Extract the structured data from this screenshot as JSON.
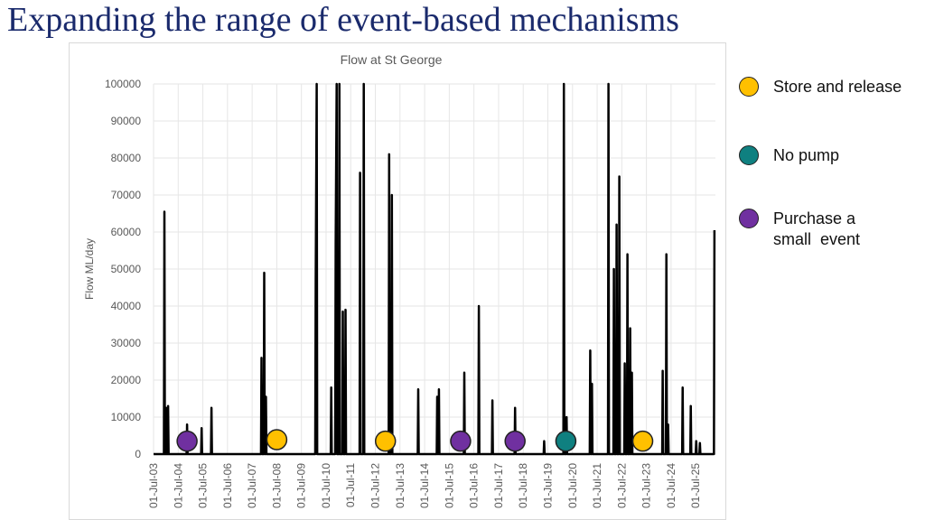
{
  "page_title": "Expanding the range of event-based mechanisms",
  "chart_data": {
    "type": "line",
    "title": "Flow at St George",
    "y_label": "Flow ML/day",
    "xlim": [
      2003.5,
      2026.3
    ],
    "xticks": [
      {
        "value": 2003.5,
        "label": "01-Jul-03"
      },
      {
        "value": 2004.5,
        "label": "01-Jul-04"
      },
      {
        "value": 2005.5,
        "label": "01-Jul-05"
      },
      {
        "value": 2006.5,
        "label": "01-Jul-06"
      },
      {
        "value": 2007.5,
        "label": "01-Jul-07"
      },
      {
        "value": 2008.5,
        "label": "01-Jul-08"
      },
      {
        "value": 2009.5,
        "label": "01-Jul-09"
      },
      {
        "value": 2010.5,
        "label": "01-Jul-10"
      },
      {
        "value": 2011.5,
        "label": "01-Jul-11"
      },
      {
        "value": 2012.5,
        "label": "01-Jul-12"
      },
      {
        "value": 2013.5,
        "label": "01-Jul-13"
      },
      {
        "value": 2014.5,
        "label": "01-Jul-14"
      },
      {
        "value": 2015.5,
        "label": "01-Jul-15"
      },
      {
        "value": 2016.5,
        "label": "01-Jul-16"
      },
      {
        "value": 2017.5,
        "label": "01-Jul-17"
      },
      {
        "value": 2018.5,
        "label": "01-Jul-18"
      },
      {
        "value": 2019.5,
        "label": "01-Jul-19"
      },
      {
        "value": 2020.5,
        "label": "01-Jul-20"
      },
      {
        "value": 2021.5,
        "label": "01-Jul-21"
      },
      {
        "value": 2022.5,
        "label": "01-Jul-22"
      },
      {
        "value": 2023.5,
        "label": "01-Jul-23"
      },
      {
        "value": 2024.5,
        "label": "01-Jul-24"
      },
      {
        "value": 2025.5,
        "label": "01-Jul-25"
      }
    ],
    "ylim": [
      0,
      100000
    ],
    "yticks": [
      0,
      10000,
      20000,
      30000,
      40000,
      50000,
      60000,
      70000,
      80000,
      90000,
      100000
    ],
    "grid": true,
    "series": [
      {
        "color": "#000000",
        "x": [
          2003.5,
          2003.92,
          2003.94,
          2003.96,
          2003.99,
          2004.01,
          2004.03,
          2004.07,
          2004.09,
          2004.11,
          2004.84,
          2004.86,
          2004.88,
          2005.43,
          2005.45,
          2005.47,
          2005.83,
          2005.85,
          2005.87,
          2007.86,
          2007.88,
          2007.9,
          2007.97,
          2007.99,
          2008.01,
          2008.04,
          2008.06,
          2008.08,
          2010.06,
          2010.08,
          2010.12,
          2010.14,
          2010.69,
          2010.71,
          2010.73,
          2010.87,
          2010.89,
          2010.93,
          2010.95,
          2011.02,
          2011.04,
          2011.06,
          2011.16,
          2011.18,
          2011.2,
          2011.27,
          2011.29,
          2011.31,
          2011.86,
          2011.88,
          2011.9,
          2012.01,
          2012.03,
          2012.05,
          2013.04,
          2013.06,
          2013.08,
          2013.15,
          2013.17,
          2013.19,
          2014.22,
          2014.24,
          2014.26,
          2014.99,
          2015.01,
          2015.03,
          2015.06,
          2015.08,
          2015.1,
          2016.09,
          2016.11,
          2016.13,
          2016.68,
          2016.7,
          2016.72,
          2017.23,
          2017.25,
          2017.27,
          2018.15,
          2018.17,
          2018.19,
          2019.33,
          2019.35,
          2019.37,
          2020.13,
          2020.15,
          2020.17,
          2020.24,
          2020.26,
          2020.28,
          2021.2,
          2021.22,
          2021.24,
          2021.27,
          2021.29,
          2021.31,
          2021.94,
          2021.96,
          2021.98,
          2022.16,
          2022.18,
          2022.2,
          2022.27,
          2022.29,
          2022.31,
          2022.38,
          2022.4,
          2022.42,
          2022.6,
          2022.62,
          2022.64,
          2022.71,
          2022.73,
          2022.75,
          2022.82,
          2022.84,
          2022.86,
          2022.89,
          2022.91,
          2022.93,
          2024.14,
          2024.16,
          2024.18,
          2024.29,
          2024.31,
          2024.33,
          2024.36,
          2024.38,
          2024.4,
          2024.95,
          2024.97,
          2024.99,
          2025.28,
          2025.3,
          2025.32,
          2025.5,
          2025.52,
          2025.54,
          2025.65,
          2025.67,
          2025.69,
          2026.24,
          2026.26
        ],
        "values": [
          0,
          0,
          65500,
          0,
          0,
          12500,
          0,
          0,
          13000,
          0,
          0,
          8000,
          0,
          0,
          7000,
          0,
          0,
          12500,
          0,
          0,
          26000,
          0,
          0,
          49000,
          0,
          0,
          15500,
          0,
          0,
          47000,
          100000,
          0,
          0,
          18000,
          0,
          0,
          57000,
          100000,
          0,
          0,
          100000,
          0,
          0,
          38500,
          0,
          0,
          39000,
          0,
          0,
          76000,
          0,
          0,
          100000,
          0,
          0,
          81000,
          0,
          0,
          70000,
          0,
          0,
          17500,
          0,
          0,
          15500,
          0,
          0,
          17500,
          0,
          0,
          22000,
          0,
          0,
          40000,
          0,
          0,
          14500,
          0,
          0,
          12500,
          0,
          0,
          3500,
          0,
          0,
          100000,
          0,
          0,
          10000,
          0,
          0,
          28000,
          0,
          0,
          19000,
          0,
          0,
          100000,
          0,
          0,
          50000,
          0,
          0,
          62000,
          0,
          0,
          75000,
          0,
          0,
          24500,
          0,
          0,
          54000,
          0,
          0,
          34000,
          0,
          0,
          22000,
          0,
          0,
          22500,
          0,
          0,
          54000,
          0,
          0,
          8000,
          0,
          0,
          18000,
          0,
          0,
          13000,
          0,
          0,
          3500,
          0,
          0,
          3000,
          0,
          0,
          60500
        ]
      },
      {
        "type": "scatter",
        "name": "Store and release",
        "color": "#ffc000",
        "x": [
          2008.5,
          2012.91,
          2023.35
        ],
        "values": [
          3900,
          3500,
          3500
        ]
      },
      {
        "type": "scatter",
        "name": "No pump",
        "color": "#0f8080",
        "x": [
          2020.23
        ],
        "values": [
          3500
        ]
      },
      {
        "type": "scatter",
        "name": "Purchase a small  event",
        "color": "#7030a0",
        "x": [
          2004.86,
          2015.96,
          2018.17
        ],
        "values": [
          3500,
          3500,
          3500
        ]
      }
    ]
  }
}
